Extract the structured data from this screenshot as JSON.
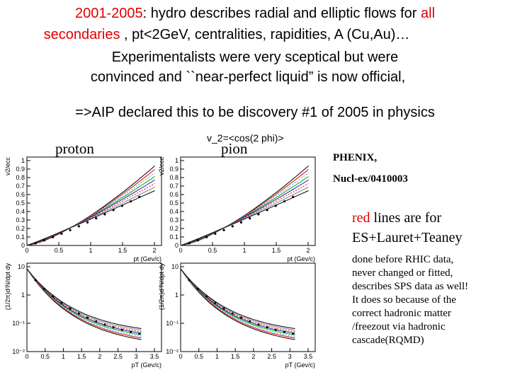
{
  "title": {
    "line1": [
      "2001-2005",
      ": hydro describes radial and elliptic flows for ",
      "all"
    ],
    "line2": [
      "secondaries",
      " , pt<2GeV, centralities, rapidities, A (Cu,Au)…"
    ],
    "line3": "Experimentalists were very sceptical but were",
    "line4": "convinced and ``near-perfect liquid” is now official,",
    "line5": "=>AIP declared this to be discovery #1 of 2005 in physics"
  },
  "labels": {
    "proton": "proton",
    "pion": "pion",
    "v2": "v_2=<cos(2 phi)>"
  },
  "reference": {
    "line1": "PHENIX,",
    "line2": "Nucl-ex/0410003"
  },
  "note": {
    "head": [
      "red",
      " lines are for"
    ],
    "head2": "ES+Lauret+Teaney",
    "lines": [
      "done before RHIC data,",
      "never changed or fitted,",
      "describes SPS data as well!",
      "It does so because of the",
      "correct hadronic matter",
      "/freezout via hadronic",
      "cascade(RQMD)"
    ]
  },
  "plots": [
    {
      "ylabel": "v2/ecc",
      "xlabel": "pt (Gev/c)",
      "xticks": [
        "0",
        "0.5",
        "1",
        "1.5",
        "2"
      ],
      "yticks": [
        "0",
        "0.1",
        "0.2",
        "0.3",
        "0.4",
        "0.5",
        "0.6",
        "0.7",
        "0.8",
        "0.9",
        "1"
      ]
    },
    {
      "ylabel": "v2/ecc",
      "xlabel": "pt (Gev/c)",
      "xticks": [
        "0",
        "0.5",
        "1",
        "1.5",
        "2"
      ],
      "yticks": [
        "0",
        "0.1",
        "0.2",
        "0.3",
        "0.4",
        "0.5",
        "0.6",
        "0.7",
        "0.8",
        "0.9",
        "1"
      ]
    },
    {
      "ylabel": "(1/2π)d²N/dpt dy",
      "xlabel": "pT (Gev/c)",
      "xticks": [
        "0",
        "0.5",
        "1",
        "1.5",
        "2",
        "2.5",
        "3",
        "3.5"
      ],
      "yticks": [
        "10⁻²",
        "10⁻¹",
        "1",
        "10"
      ]
    },
    {
      "ylabel": "(1/2π)d²N/dpt dy",
      "xlabel": "pT (Gev/c)",
      "xticks": [
        "0",
        "0.5",
        "1",
        "1.5",
        "2",
        "2.5",
        "3",
        "3.5"
      ],
      "yticks": [
        "10⁻²",
        "10⁻¹",
        "1",
        "10"
      ]
    }
  ]
}
